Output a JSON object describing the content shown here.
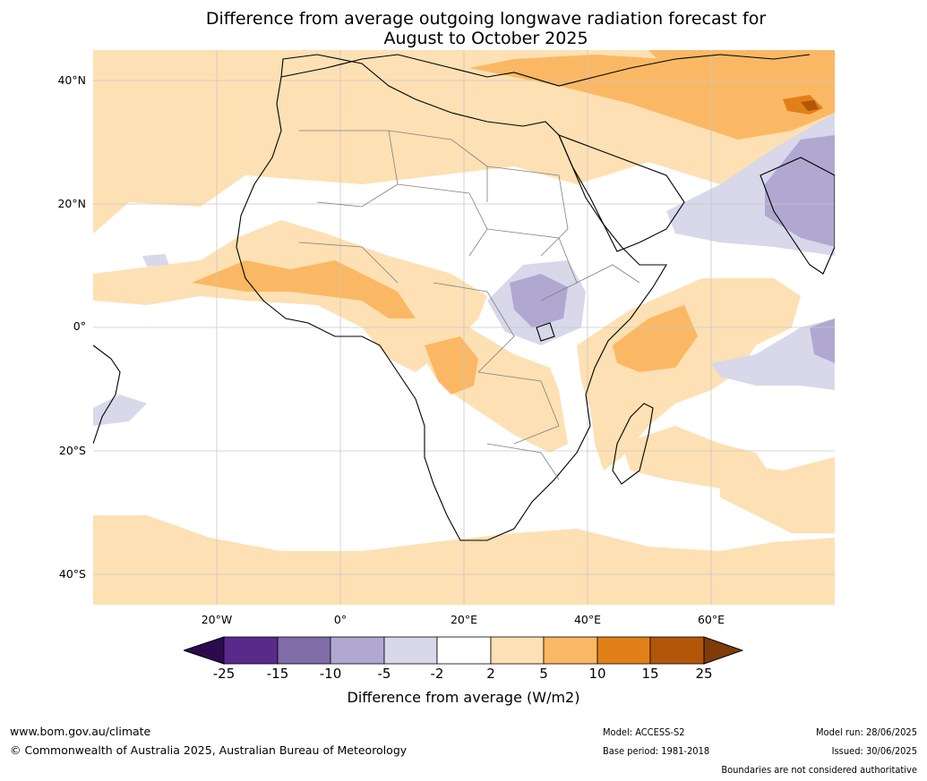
{
  "title": {
    "line1": "Difference from average outgoing longwave radiation forecast for",
    "line2": "August to October 2025"
  },
  "map": {
    "lat_labels": [
      "40°N",
      "20°N",
      "0°",
      "20°S",
      "40°S"
    ],
    "lon_labels": [
      "20°W",
      "0°",
      "20°E",
      "40°E",
      "60°E"
    ]
  },
  "colorbar": {
    "ticks": [
      "-25",
      "-15",
      "-10",
      "-5",
      "-2",
      "2",
      "5",
      "10",
      "15",
      "25"
    ],
    "colors": [
      "#2d0a4e",
      "#5a2a8a",
      "#7f6ca9",
      "#b0a8d1",
      "#d8d8ea",
      "#ffffff",
      "#fde0b3",
      "#fbb864",
      "#e08016",
      "#b45609",
      "#7f3b08"
    ],
    "title": "Difference from average (W/m2)"
  },
  "footer": {
    "website": "www.bom.gov.au/climate",
    "copyright": "© Commonwealth of Australia 2025, Australian Bureau of Meteorology",
    "model": "Model: ACCESS-S2",
    "base_period": "Base period: 1981-2018",
    "model_run": "Model run: 28/06/2025",
    "issued": "Issued: 30/06/2025",
    "disclaimer": "Boundaries are not considered authoritative"
  }
}
